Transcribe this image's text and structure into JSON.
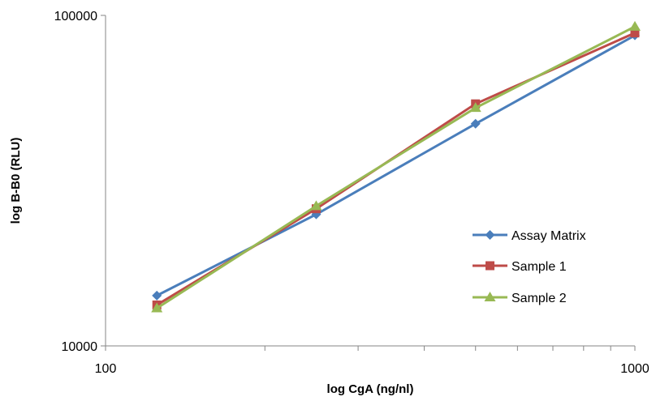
{
  "chart_data": {
    "type": "line",
    "title": "",
    "xlabel": "log CgA (ng/nl)",
    "ylabel": "log B-B0 (RLU)",
    "x_scale": "log",
    "y_scale": "log",
    "xlim": [
      100,
      1000
    ],
    "ylim": [
      10000,
      100000
    ],
    "x_tick_labels": [
      "100",
      "1000"
    ],
    "y_tick_labels": [
      "10000",
      "100000"
    ],
    "grid": false,
    "legend_position": "right",
    "x": [
      125,
      250,
      500,
      1000
    ],
    "series": [
      {
        "name": "Assay Matrix",
        "color": "#4A7EBB",
        "marker": "diamond",
        "values": [
          14200,
          25000,
          47000,
          87000
        ]
      },
      {
        "name": "Sample 1",
        "color": "#BE4B48",
        "marker": "square",
        "values": [
          13300,
          26000,
          54000,
          88500
        ]
      },
      {
        "name": "Sample 2",
        "color": "#98B954",
        "marker": "triangle",
        "values": [
          13000,
          26500,
          52500,
          92500
        ]
      }
    ]
  }
}
